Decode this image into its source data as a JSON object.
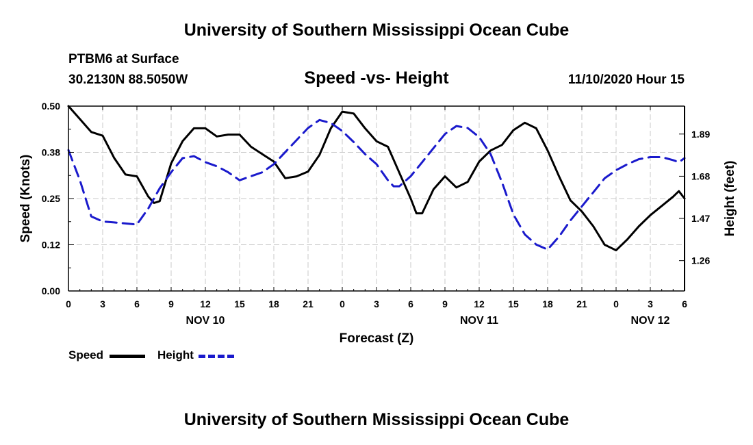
{
  "page": {
    "title_top": "University of Southern Mississippi Ocean Cube",
    "title_bottom": "University of Southern Mississippi Ocean Cube",
    "station": "PTBM6 at Surface",
    "coords": "30.2130N 88.5050W",
    "datetime": "11/10/2020 Hour 15"
  },
  "colors": {
    "speed": "#000000",
    "height": "#1a1acc",
    "grid": "#c8c8c8"
  },
  "chart_data": {
    "type": "line",
    "title": "Speed -vs- Height",
    "xlabel": "Forecast (Z)",
    "ylabel_left": "Speed (Knots)",
    "ylabel_right": "Height (feet)",
    "xlim_hours": [
      0,
      54
    ],
    "x_tick_hours": [
      0,
      3,
      6,
      9,
      12,
      15,
      18,
      21,
      24,
      27,
      30,
      33,
      36,
      39,
      42,
      45,
      48,
      51,
      54
    ],
    "x_tick_labels": [
      "0",
      "3",
      "6",
      "9",
      "12",
      "15",
      "18",
      "21",
      "0",
      "3",
      "6",
      "9",
      "12",
      "15",
      "18",
      "21",
      "0",
      "3",
      "6"
    ],
    "date_labels": [
      {
        "hour": 12,
        "label": "NOV 10"
      },
      {
        "hour": 36,
        "label": "NOV 11"
      },
      {
        "hour": 51,
        "label": "NOV 12"
      }
    ],
    "y_left": {
      "ylim": [
        0,
        0.5
      ],
      "ticks": [
        0,
        0.125,
        0.25,
        0.375,
        0.5
      ],
      "tick_labels": [
        "0.00",
        "0.12",
        "0.25",
        "0.38",
        "0.50"
      ]
    },
    "y_right": {
      "ylim": [
        1.109,
        2.029
      ],
      "ticks": [
        1.26,
        1.47,
        1.68,
        1.89
      ],
      "tick_labels": [
        "1.26",
        "1.47",
        "1.68",
        "1.89"
      ]
    },
    "series": [
      {
        "name": "Speed",
        "axis": "left",
        "style": "solid",
        "x": [
          0,
          1,
          2,
          3,
          4,
          5,
          6,
          7,
          7.5,
          8,
          9,
          10,
          11,
          12,
          13,
          14,
          15,
          16,
          17,
          18,
          19,
          20,
          21,
          22,
          23,
          24,
          25,
          26,
          27,
          28,
          29,
          30,
          30.5,
          31,
          32,
          33,
          34,
          35,
          36,
          37,
          38,
          39,
          40,
          41,
          42,
          43,
          44,
          45,
          46,
          47,
          48,
          49,
          50,
          51,
          52,
          53,
          53.5,
          54
        ],
        "values": [
          0.5,
          0.465,
          0.43,
          0.42,
          0.36,
          0.315,
          0.31,
          0.255,
          0.238,
          0.243,
          0.345,
          0.405,
          0.44,
          0.44,
          0.418,
          0.423,
          0.423,
          0.39,
          0.37,
          0.35,
          0.305,
          0.31,
          0.323,
          0.368,
          0.44,
          0.485,
          0.48,
          0.44,
          0.405,
          0.39,
          0.32,
          0.25,
          0.21,
          0.21,
          0.275,
          0.31,
          0.28,
          0.295,
          0.35,
          0.38,
          0.395,
          0.435,
          0.455,
          0.44,
          0.38,
          0.31,
          0.245,
          0.215,
          0.175,
          0.125,
          0.11,
          0.14,
          0.175,
          0.205,
          0.23,
          0.255,
          0.27,
          0.25
        ]
      },
      {
        "name": "Height",
        "axis": "right",
        "style": "dashed",
        "x": [
          0,
          1,
          2,
          3,
          4,
          5,
          6,
          7,
          8,
          9,
          10,
          11,
          12,
          13,
          14,
          15,
          16,
          17,
          18,
          19,
          20,
          21,
          22,
          23,
          24,
          25,
          26,
          27,
          28,
          28.5,
          29,
          30,
          31,
          32,
          33,
          34,
          35,
          36,
          37,
          38,
          39,
          40,
          41,
          42,
          43,
          44,
          45,
          46,
          47,
          48,
          49,
          50,
          51,
          52,
          53,
          53.5,
          54
        ],
        "values": [
          1.81,
          1.66,
          1.48,
          1.455,
          1.45,
          1.445,
          1.44,
          1.52,
          1.62,
          1.7,
          1.77,
          1.78,
          1.75,
          1.73,
          1.7,
          1.66,
          1.68,
          1.7,
          1.74,
          1.8,
          1.86,
          1.92,
          1.96,
          1.945,
          1.905,
          1.85,
          1.79,
          1.74,
          1.66,
          1.63,
          1.63,
          1.68,
          1.75,
          1.82,
          1.89,
          1.93,
          1.92,
          1.875,
          1.79,
          1.65,
          1.49,
          1.39,
          1.34,
          1.315,
          1.38,
          1.46,
          1.53,
          1.6,
          1.67,
          1.71,
          1.74,
          1.765,
          1.775,
          1.775,
          1.76,
          1.75,
          1.77
        ]
      }
    ],
    "legend": [
      {
        "name": "Speed",
        "label": "Speed"
      },
      {
        "name": "Height",
        "label": "Height"
      }
    ]
  }
}
